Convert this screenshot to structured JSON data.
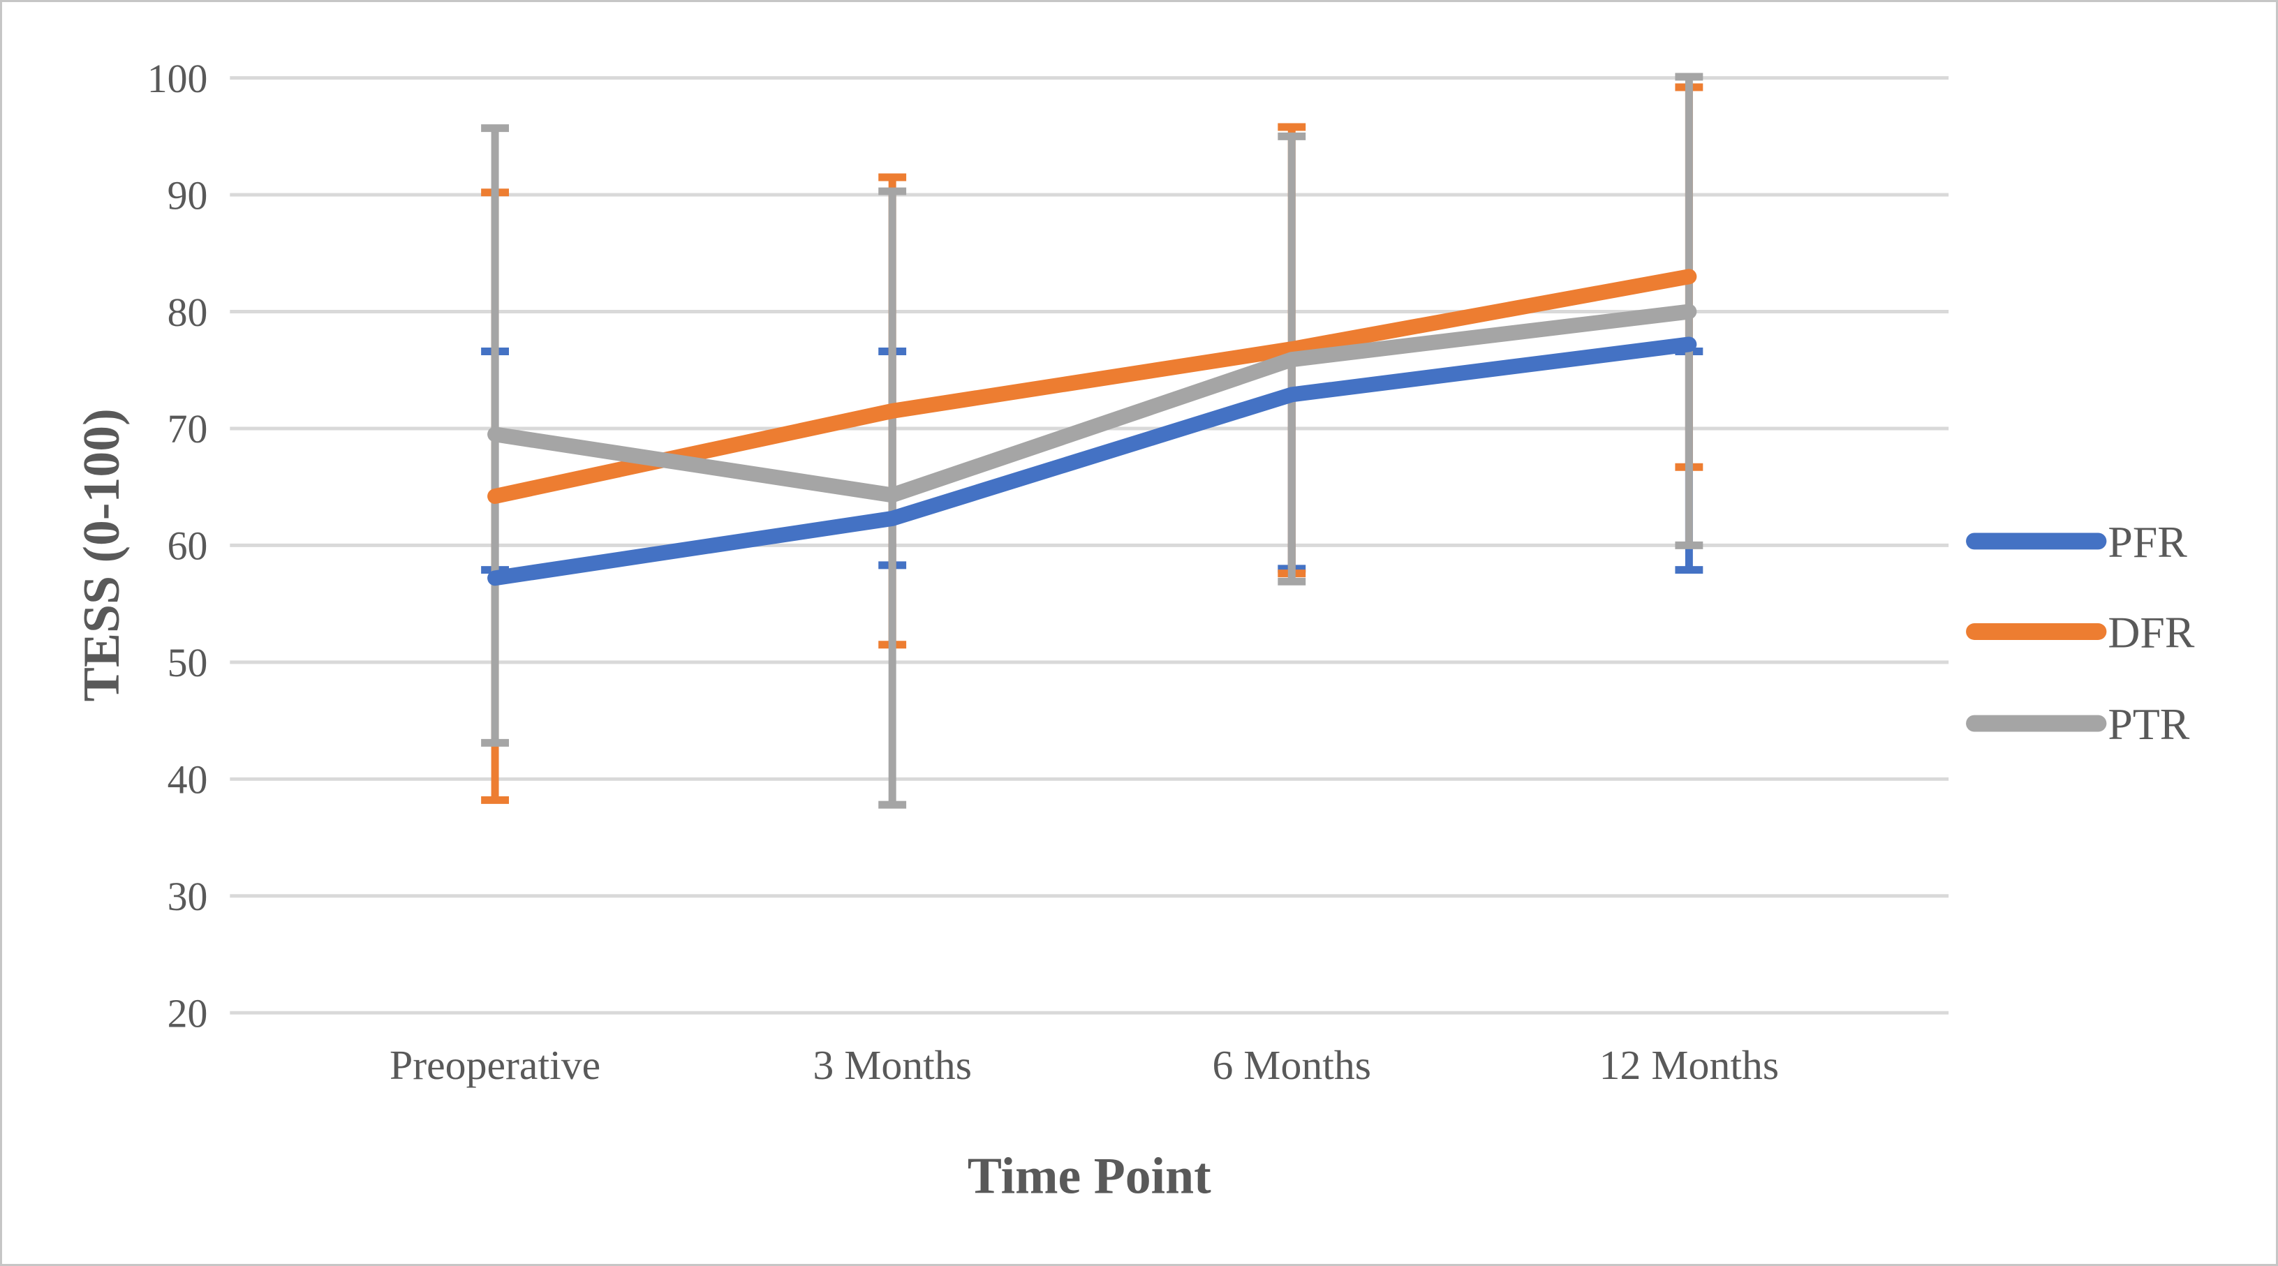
{
  "figure": {
    "background": "#ffffff",
    "border_color": "#c6c6c6",
    "text_color": "#595959",
    "gridline_color": "#d9d9d9"
  },
  "chart_data": {
    "type": "line",
    "title": "",
    "xlabel": "Time Point",
    "ylabel": "TESS (0-100)",
    "categories": [
      "Preoperative",
      "3 Months",
      "6 Months",
      "12 Months"
    ],
    "yticks": [
      20,
      30,
      40,
      50,
      60,
      70,
      80,
      90,
      100
    ],
    "ylim": [
      20,
      100
    ],
    "grid": true,
    "legend_position": "right",
    "series": [
      {
        "name": "PFR",
        "color": "#4472C4",
        "values": [
          57.2,
          62.3,
          72.9,
          77.2
        ],
        "err_lo": [
          57.9,
          58.3,
          58.0,
          57.9
        ],
        "err_hi": [
          76.6,
          76.6,
          76.6,
          76.6
        ]
      },
      {
        "name": "DFR",
        "color": "#ED7D31",
        "values": [
          64.2,
          71.5,
          76.8,
          83.0
        ],
        "err_lo": [
          38.2,
          51.5,
          57.6,
          66.7
        ],
        "err_hi": [
          90.2,
          91.5,
          95.8,
          99.2
        ]
      },
      {
        "name": "PTR",
        "color": "#A5A5A5",
        "values": [
          69.5,
          64.3,
          75.9,
          80.0
        ],
        "err_lo": [
          43.1,
          37.8,
          56.9,
          60.0
        ],
        "err_hi": [
          95.7,
          90.3,
          95.0,
          100.1
        ]
      }
    ]
  }
}
